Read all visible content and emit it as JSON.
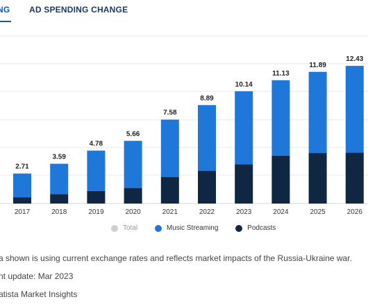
{
  "tabs": [
    {
      "label": "NG",
      "active": true
    },
    {
      "label": "AD SPENDING CHANGE",
      "active": false
    }
  ],
  "colors": {
    "music_streaming": "#1f77d9",
    "podcasts": "#0f2742",
    "total": "#cfcfcf",
    "accent": "#0b5cbe"
  },
  "chart_data": {
    "type": "bar",
    "stacked": true,
    "categories": [
      "2017",
      "2018",
      "2019",
      "2020",
      "2021",
      "2022",
      "2023",
      "2024",
      "2025",
      "2026"
    ],
    "series": [
      {
        "name": "Music Streaming",
        "values": [
          2.15,
          2.75,
          3.65,
          4.26,
          5.18,
          5.93,
          6.61,
          6.8,
          7.33,
          7.84
        ]
      },
      {
        "name": "Podcasts",
        "values": [
          0.56,
          0.84,
          1.13,
          1.4,
          2.4,
          2.96,
          3.53,
          4.33,
          4.56,
          4.59
        ]
      }
    ],
    "totals": [
      "2.71",
      "3.59",
      "4.78",
      "5.66",
      "7.58",
      "8.89",
      "10.14",
      "11.13",
      "11.89",
      "12.43"
    ],
    "ylim": [
      0,
      12.5
    ],
    "grid": true,
    "legend": [
      {
        "name": "Total",
        "muted": true
      },
      {
        "name": "Music Streaming",
        "muted": false
      },
      {
        "name": "Podcasts",
        "muted": false
      }
    ],
    "legend_position": "bottom"
  },
  "footnotes": {
    "line1": "a shown is using current exchange rates and reflects market impacts of the Russia-Ukraine war.",
    "line2": "nt update: Mar 2023",
    "line3": "atista Market Insights"
  }
}
